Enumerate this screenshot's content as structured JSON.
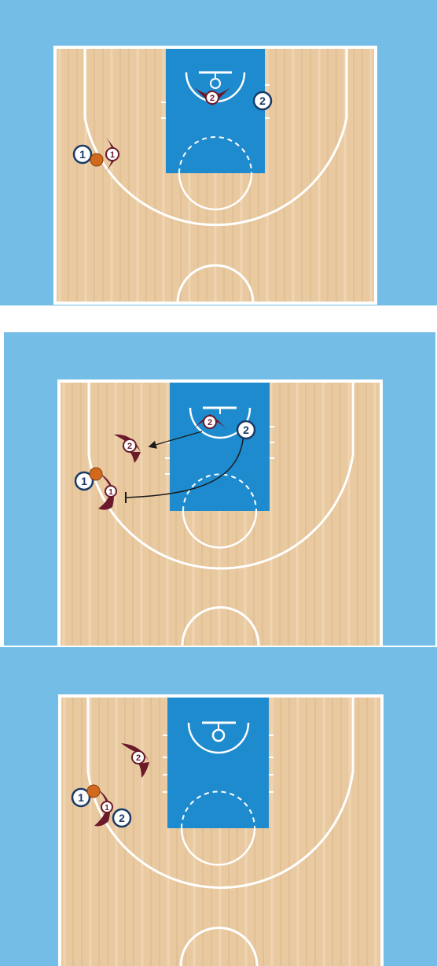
{
  "colors": {
    "outer": "#74bde6",
    "wood": "#e9c9a0",
    "wood_stripe": "#d7ae82",
    "wood_light": "#f2dbbb",
    "paint": "#1f8bcf",
    "lines": "#ffffff",
    "offense_fill": "#ffffff",
    "offense_stroke": "#1a3b66",
    "defense": "#6b1a2b",
    "ball": "#d26a1e",
    "arrow": "#1b1b1b"
  },
  "frames": [
    {
      "name": "frame-1",
      "players": [
        {
          "team": "offense",
          "label": "1",
          "role": "ball-handler"
        },
        {
          "team": "offense",
          "label": "2",
          "role": "wing"
        }
      ],
      "defenders": [
        {
          "label": "1"
        },
        {
          "label": "2"
        }
      ],
      "ball": {
        "holder": "1"
      }
    },
    {
      "name": "frame-2",
      "players": [
        {
          "team": "offense",
          "label": "1",
          "role": "ball-handler"
        },
        {
          "team": "offense",
          "label": "2",
          "role": "screener"
        }
      ],
      "defenders": [
        {
          "label": "1"
        },
        {
          "label": "2"
        }
      ],
      "ball": {
        "holder": "1"
      },
      "actions": [
        {
          "type": "cut-to-screen",
          "from": "2",
          "to": "1"
        },
        {
          "type": "defender-move",
          "from": "defender-2",
          "to": "help-position"
        }
      ]
    },
    {
      "name": "frame-3",
      "players": [
        {
          "team": "offense",
          "label": "1",
          "role": "ball-handler"
        },
        {
          "team": "offense",
          "label": "2",
          "role": "screener"
        }
      ],
      "defenders": [
        {
          "label": "1"
        },
        {
          "label": "2"
        }
      ],
      "ball": {
        "holder": "1"
      }
    }
  ]
}
